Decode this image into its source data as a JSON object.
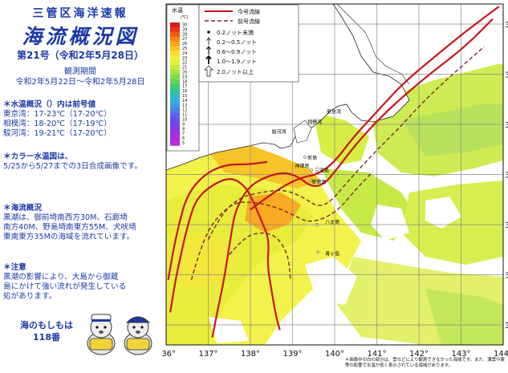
{
  "header": {
    "agency": "三管区海洋速報",
    "title": "海流概況図",
    "issue": "第21号（令和2年5月28日）",
    "period_label": "観測期間",
    "period": "令和2年5月22日～令和2年5月28日"
  },
  "sections": [
    {
      "heading": "＊水温概況（）内は前号値",
      "lines": [
        "東京湾：17-23℃（17-20℃）",
        "相模湾：18-20℃（17-19℃）",
        "駿河湾：19-21℃（17-20℃）"
      ]
    },
    {
      "heading": "＊カラー水温図は、",
      "lines": [
        "5/25から5/27までの3日合成画像です。"
      ]
    },
    {
      "heading": "＊海流概況",
      "lines": [
        " 黒潮は、御前埼南西方30M、石廊埼",
        "南方40M、野島埼南東方55M、犬吠埼",
        "東南東方35Mの海域を流れています。"
      ]
    },
    {
      "heading": "＊注意",
      "lines": [
        " 黒潮の影響により、大島から御蔵",
        "島にかけて強い流れが発生している",
        "処があります。"
      ]
    }
  ],
  "mascot": {
    "line1": "海のもしもは",
    "line2": "118番"
  },
  "map": {
    "lon_ticks": [
      "136°",
      "137°",
      "138°",
      "139°",
      "140°",
      "141°",
      "142°",
      "143°",
      "144°"
    ],
    "lat_ticks": [
      "37°",
      "36°",
      "35°",
      "34°",
      "33°",
      "32°",
      "31°"
    ],
    "lon_range": [
      136,
      144
    ],
    "lat_range": [
      30.6,
      37.4
    ],
    "places": [
      {
        "name": "駿河湾",
        "lon": 138.45,
        "lat": 34.85
      },
      {
        "name": "相模湾",
        "lon": 139.3,
        "lat": 35.05
      },
      {
        "name": "東京湾",
        "lon": 139.75,
        "lat": 35.25
      },
      {
        "name": "新島",
        "lon": 139.3,
        "lat": 34.33
      },
      {
        "name": "神津島",
        "lon": 139.0,
        "lat": 34.17
      },
      {
        "name": "三宅島",
        "lon": 139.47,
        "lat": 34.08
      },
      {
        "name": "御蔵島",
        "lon": 139.4,
        "lat": 33.85
      },
      {
        "name": "八丈島",
        "lon": 139.72,
        "lat": 33.05
      },
      {
        "name": "青ヶ島",
        "lon": 139.72,
        "lat": 32.42
      }
    ]
  },
  "legend": {
    "sst_title": "水温",
    "sst_unit": "(℃)",
    "sst_ticks": [
      "30",
      "29",
      "28",
      "27",
      "26",
      "25",
      "24",
      "23",
      "22",
      "21",
      "20",
      "19",
      "18",
      "17",
      "16",
      "15",
      "14",
      "13",
      "12",
      "11",
      "10",
      "9",
      "8",
      "7",
      "6",
      "5"
    ],
    "sst_colors": [
      "#d81b1b",
      "#ea3516",
      "#f25a16",
      "#f88417",
      "#fca81c",
      "#fdc523",
      "#fbdf2c",
      "#f3ef35",
      "#def238",
      "#c1ec3b",
      "#a3e542",
      "#83dc4d",
      "#63d35a",
      "#46cb74",
      "#33c39a",
      "#2fbcbd",
      "#35b0d8",
      "#3f9be4",
      "#4a82ea",
      "#5768ee",
      "#6651ef",
      "#7742ee",
      "#8a38ea",
      "#9c30e6",
      "#ad2ce2",
      "#bf2ade"
    ],
    "line_current": "今号流線",
    "line_previous": "前号流線",
    "speeds": [
      "0.2ノット未満",
      "0.2～0.5ノット",
      "0.6～0.9ノット",
      "1.0～1.9ノット",
      "2.0ノット以上"
    ],
    "current_color": "#c8161e",
    "previous_color": "#7a2b33"
  },
  "chart_data": {
    "type": "map",
    "series": [
      {
        "name": "今号流線",
        "lines": [
          [
            [
              137.1,
              30.75
            ],
            [
              137.2,
              31.2
            ],
            [
              137.35,
              31.8
            ],
            [
              137.45,
              32.3
            ],
            [
              137.55,
              32.85
            ],
            [
              137.65,
              33.3
            ],
            [
              137.95,
              33.75
            ],
            [
              138.35,
              33.95
            ],
            [
              138.8,
              34.05
            ],
            [
              139.15,
              33.95
            ],
            [
              139.45,
              33.75
            ],
            [
              139.75,
              33.8
            ],
            [
              140.05,
              34.1
            ],
            [
              140.5,
              34.6
            ],
            [
              141.1,
              35.15
            ],
            [
              141.75,
              35.65
            ],
            [
              142.4,
              36.1
            ],
            [
              143.1,
              36.55
            ],
            [
              143.75,
              37.1
            ]
          ],
          [
            [
              136.1,
              31.25
            ],
            [
              136.2,
              31.8
            ],
            [
              136.35,
              32.4
            ],
            [
              136.5,
              32.95
            ],
            [
              136.7,
              33.5
            ],
            [
              137.1,
              33.8
            ],
            [
              137.55,
              33.95
            ],
            [
              137.9,
              33.75
            ],
            [
              138.1,
              33.4
            ],
            [
              138.25,
              33.1
            ],
            [
              138.45,
              32.7
            ],
            [
              138.4,
              32.2
            ],
            [
              138.5,
              31.7
            ],
            [
              138.6,
              31.2
            ],
            [
              138.7,
              30.9
            ]
          ],
          [
            [
              136.05,
              31.9
            ],
            [
              136.15,
              32.4
            ],
            [
              136.3,
              33.0
            ],
            [
              136.5,
              33.6
            ],
            [
              136.9,
              34.0
            ],
            [
              137.4,
              34.2
            ],
            [
              137.95,
              34.2
            ],
            [
              138.4,
              34.25
            ]
          ],
          [
            [
              138.0,
              33.3
            ],
            [
              138.4,
              33.55
            ],
            [
              138.85,
              33.8
            ],
            [
              139.25,
              33.95
            ],
            [
              139.6,
              34.0
            ],
            [
              140.0,
              34.25
            ],
            [
              140.45,
              34.75
            ],
            [
              141.0,
              35.25
            ],
            [
              141.6,
              35.8
            ],
            [
              142.3,
              36.3
            ],
            [
              143.1,
              36.85
            ],
            [
              143.9,
              37.35
            ]
          ]
        ]
      },
      {
        "name": "前号流線",
        "lines": [
          [
            [
              137.0,
              32.7
            ],
            [
              137.3,
              33.2
            ],
            [
              137.75,
              33.55
            ],
            [
              138.3,
              33.65
            ],
            [
              138.8,
              33.7
            ],
            [
              139.25,
              33.55
            ],
            [
              139.6,
              33.35
            ],
            [
              139.9,
              33.45
            ],
            [
              140.3,
              33.85
            ],
            [
              140.9,
              34.4
            ],
            [
              141.5,
              34.9
            ],
            [
              142.1,
              35.45
            ],
            [
              142.8,
              36.0
            ],
            [
              143.55,
              36.55
            ]
          ],
          [
            [
              136.6,
              31.9
            ],
            [
              136.8,
              32.5
            ],
            [
              137.1,
              33.05
            ],
            [
              137.6,
              33.45
            ],
            [
              138.1,
              33.45
            ],
            [
              138.6,
              33.35
            ],
            [
              139.0,
              33.2
            ],
            [
              139.35,
              33.05
            ],
            [
              139.7,
              33.1
            ],
            [
              140.1,
              33.3
            ],
            [
              140.5,
              33.7
            ],
            [
              140.9,
              34.05
            ]
          ],
          [
            [
              137.5,
              32.4
            ],
            [
              137.8,
              32.7
            ],
            [
              138.15,
              32.85
            ],
            [
              138.6,
              32.8
            ],
            [
              138.9,
              32.4
            ],
            [
              138.95,
              31.9
            ]
          ]
        ]
      }
    ]
  },
  "note": "＊画像中の白の部分は、雲などにより観測できなかった海域です。また、薄雲や霧等の影響で水温が低く表示されている海域があります。"
}
